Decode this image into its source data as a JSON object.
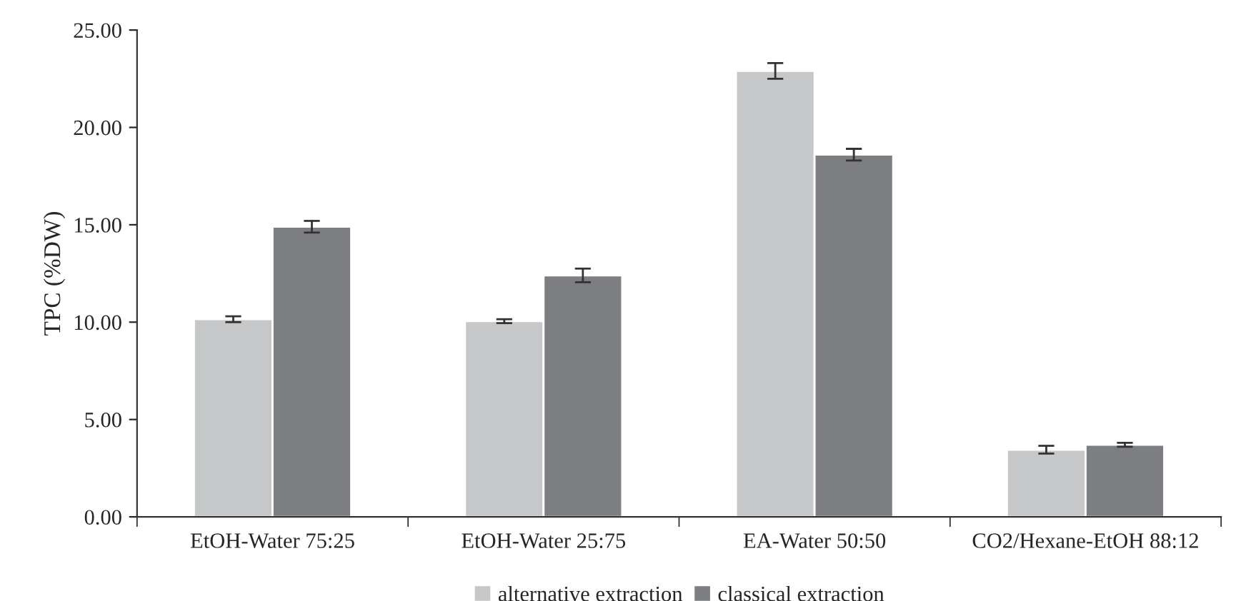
{
  "chart_data": {
    "type": "bar",
    "ylabel": "TPC (%DW)",
    "categories": [
      "EtOH-Water 75:25",
      "EtOH-Water 25:75",
      "EA-Water 50:50",
      "CO2/Hexane-EtOH 88:12"
    ],
    "series": [
      {
        "name": "alternative extraction",
        "color": "#c6c7c9",
        "values": [
          10.15,
          10.05,
          22.9,
          3.45
        ],
        "errors": [
          0.15,
          0.1,
          0.4,
          0.2
        ]
      },
      {
        "name": "classical extraction",
        "color": "#7d7e82",
        "values": [
          14.9,
          12.4,
          18.6,
          3.7
        ],
        "errors": [
          0.3,
          0.35,
          0.3,
          0.1
        ]
      }
    ],
    "ylim": [
      0,
      25
    ],
    "yticks": [
      {
        "value": 0,
        "label": "0.00"
      },
      {
        "value": 5,
        "label": "5.00"
      },
      {
        "value": 10,
        "label": "10.00"
      },
      {
        "value": 15,
        "label": "15.00"
      },
      {
        "value": 20,
        "label": "20.00"
      },
      {
        "value": 25,
        "label": "25.00"
      }
    ],
    "grid": false,
    "legend": "bottom"
  }
}
